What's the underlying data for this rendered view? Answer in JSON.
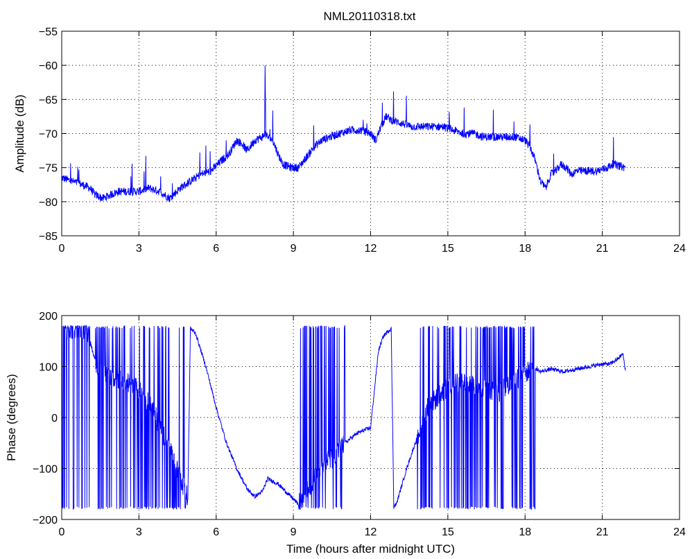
{
  "title": "NML20110318.txt",
  "chart_data": [
    {
      "type": "line",
      "title": "NML20110318.txt",
      "xlabel": "",
      "ylabel": "Amplitude (dB)",
      "xlim": [
        0,
        24
      ],
      "ylim": [
        -85,
        -55
      ],
      "xticks": [
        0,
        3,
        6,
        9,
        12,
        15,
        18,
        21,
        24
      ],
      "yticks": [
        -85,
        -80,
        -75,
        -70,
        -65,
        -60,
        -55
      ],
      "grid": true,
      "line_color": "#0000ff",
      "series": [
        {
          "x": [
            0,
            0.4,
            0.8,
            1.1,
            1.3,
            1.6,
            1.9,
            2.2,
            2.6,
            3.0,
            3.4,
            3.8,
            4.2,
            4.6,
            5.0,
            5.4,
            5.8,
            6.2,
            6.5,
            6.8,
            7.0,
            7.2,
            7.5,
            7.8,
            7.9,
            8.0,
            8.2,
            8.4,
            8.6,
            8.9,
            9.2,
            9.5,
            9.8,
            10.1,
            10.4,
            10.8,
            11.2,
            11.6,
            12.0,
            12.2,
            12.4,
            12.6,
            12.8,
            13.2,
            13.6,
            14.0,
            14.4,
            14.8,
            15.2,
            15.6,
            16.0,
            16.4,
            16.8,
            17.2,
            17.6,
            18.0,
            18.2,
            18.4,
            18.6,
            18.8,
            19.0,
            19.2,
            19.4,
            19.6,
            19.8,
            20.0,
            20.4,
            20.8,
            21.2,
            21.4,
            21.7,
            21.9
          ],
          "y": [
            -76.5,
            -77,
            -77.5,
            -78,
            -79,
            -79.5,
            -79,
            -78.5,
            -78.5,
            -78.5,
            -78,
            -78.5,
            -79.5,
            -78,
            -77,
            -76,
            -75.5,
            -74,
            -73,
            -71,
            -71.5,
            -72.5,
            -71,
            -70.5,
            -70,
            -70.5,
            -71,
            -73,
            -74.5,
            -75,
            -75,
            -73.5,
            -72,
            -71,
            -70.5,
            -70,
            -69.5,
            -69.5,
            -70,
            -71,
            -69,
            -67.5,
            -68,
            -68.5,
            -69,
            -69,
            -69,
            -69,
            -69.5,
            -70,
            -70,
            -70.5,
            -70.5,
            -70.5,
            -70.5,
            -71,
            -72,
            -74,
            -77,
            -78,
            -76,
            -75.5,
            -74.5,
            -75,
            -76,
            -75.5,
            -75.5,
            -75.5,
            -75,
            -74.5,
            -74.8,
            -75
          ]
        }
      ],
      "annotations": [
        "spike near 7.9 h to -60 dB"
      ]
    },
    {
      "type": "line",
      "title": "",
      "xlabel": "Time (hours after midnight UTC)",
      "ylabel": "Phase (degrees)",
      "xlim": [
        0,
        24
      ],
      "ylim": [
        -200,
        200
      ],
      "xticks": [
        0,
        3,
        6,
        9,
        12,
        15,
        18,
        21,
        24
      ],
      "yticks": [
        -200,
        -100,
        0,
        100,
        200
      ],
      "grid": true,
      "line_color": "#0000ff",
      "series": [
        {
          "x": [
            0,
            0.5,
            1.0,
            1.2,
            1.4,
            2.0,
            2.5,
            3.0,
            3.5,
            4.0,
            4.5,
            4.9,
            5.0,
            5.2,
            5.6,
            6.0,
            6.4,
            6.8,
            7.2,
            7.5,
            7.8,
            8.0,
            8.4,
            8.8,
            9.2,
            9.6,
            10.0,
            10.5,
            11.0,
            11.5,
            12.0,
            12.3,
            12.5,
            12.8,
            12.9,
            13.0,
            13.4,
            13.8,
            14.2,
            14.6,
            15.0,
            15.5,
            16.0,
            16.5,
            17.0,
            17.5,
            18.0,
            18.3,
            18.6,
            19.0,
            19.5,
            20.0,
            20.5,
            21.0,
            21.3,
            21.6,
            21.8,
            21.9
          ],
          "y": [
            170,
            175,
            170,
            130,
            95,
            80,
            70,
            55,
            20,
            -40,
            -100,
            -160,
            175,
            165,
            100,
            20,
            -50,
            -100,
            -140,
            -155,
            -145,
            -120,
            -130,
            -150,
            -170,
            -140,
            -100,
            -80,
            -50,
            -30,
            -20,
            130,
            160,
            175,
            -175,
            -170,
            -100,
            -40,
            20,
            40,
            60,
            70,
            65,
            55,
            50,
            70,
            85,
            100,
            90,
            95,
            90,
            95,
            100,
            105,
            105,
            115,
            125,
            92
          ]
        }
      ],
      "annotations": [
        "phase wraps rapidly between -180 and 180 in intervals 0-1.1, 1.3-4.9, 9.2-11, 13.8-18.4 h"
      ]
    }
  ]
}
